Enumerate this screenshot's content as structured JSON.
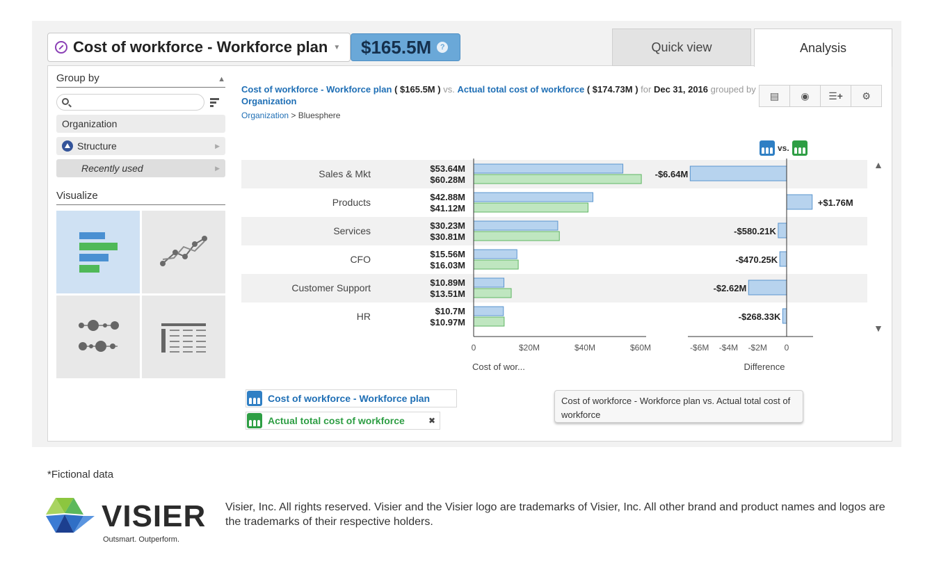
{
  "header": {
    "title": "Cost of workforce - Workforce plan",
    "value": "$165.5M",
    "help_glyph": "?",
    "tabs": [
      {
        "label": "Quick view",
        "active": false
      },
      {
        "label": "Analysis",
        "active": true
      }
    ]
  },
  "sidebar": {
    "group_by_title": "Group by",
    "search_placeholder": "",
    "items": [
      {
        "label": "Organization"
      },
      {
        "label": "Structure"
      },
      {
        "label": "Recently used"
      }
    ],
    "visualize_title": "Visualize",
    "viz_options": [
      "bar-chart-icon",
      "line-chart-icon",
      "bubble-chart-icon",
      "table-icon"
    ],
    "active_viz": "bar-chart-icon"
  },
  "description": {
    "metric1": "Cost of workforce - Workforce plan",
    "metric1_value": "( $165.5M )",
    "vs": "vs.",
    "metric2": "Actual total cost of workforce",
    "metric2_value": "( $174.73M )",
    "for": "for",
    "date": "Dec 31, 2016",
    "grouped_by": "grouped by",
    "group": "Organization"
  },
  "breadcrumb": {
    "root": "Organization",
    "separator": ">",
    "current": "Bluesphere"
  },
  "toolbar": {
    "buttons": [
      "sort-icon",
      "eye-icon",
      "add-list-icon",
      "gear-icon"
    ],
    "glyphs": [
      "▤",
      "◉",
      "☰+",
      "⚙"
    ]
  },
  "vs_legend": "vs.",
  "chart_data": {
    "type": "bar",
    "categories": [
      "Sales & Mkt",
      "Products",
      "Services",
      "CFO",
      "Customer Support",
      "HR"
    ],
    "series": [
      {
        "name": "Cost of workforce - Workforce plan",
        "values": [
          53.64,
          42.88,
          30.23,
          15.56,
          10.89,
          10.7
        ],
        "labels": [
          "$53.64M",
          "$42.88M",
          "$30.23M",
          "$15.56M",
          "$10.89M",
          "$10.7M"
        ],
        "color": "#b7d3ee",
        "stroke": "#5a95cf"
      },
      {
        "name": "Actual total cost of workforce",
        "values": [
          60.28,
          41.12,
          30.81,
          16.03,
          13.51,
          10.97
        ],
        "labels": [
          "$60.28M",
          "$41.12M",
          "$30.81M",
          "$16.03M",
          "$13.51M",
          "$10.97M"
        ],
        "color": "#bfe6c0",
        "stroke": "#5fb563"
      }
    ],
    "difference": {
      "values": [
        -6.64,
        1.76,
        -0.58021,
        -0.47025,
        -2.62,
        -0.26833
      ],
      "labels": [
        "-$6.64M",
        "+$1.76M",
        "-$580.21K",
        "-$470.25K",
        "-$2.62M",
        "-$268.33K"
      ],
      "ticks": [
        "-$6M",
        "-$4M",
        "-$2M",
        "0"
      ],
      "tick_values": [
        -6,
        -4,
        -2,
        0
      ],
      "xlabel": "Difference",
      "xlim": [
        -6.8,
        1.8
      ]
    },
    "xticks": [
      "0",
      "$20M",
      "$40M",
      "$60M"
    ],
    "xtick_values": [
      0,
      20,
      40,
      60
    ],
    "xlabel": "Cost of wor...",
    "xlim": [
      0,
      60
    ]
  },
  "legend": {
    "item1": "Cost of workforce - Workforce plan",
    "item2": "Actual total cost of workforce",
    "close_glyph": "✖"
  },
  "tooltip": "Cost of workforce - Workforce plan vs. Actual total cost of workforce",
  "footer": {
    "note": "*Fictional data",
    "logo_word": "VISIER",
    "logo_tagline": "Outsmart. Outperform.",
    "legal": "Visier, Inc. All rights reserved. Visier and the Visier logo are trademarks of Visier, Inc. All other brand and product names and logos are the trademarks of their respective holders.",
    "colors": {
      "logo_green": "#8cc63f",
      "logo_blue": "#2f6fc6",
      "logo_dark": "#1c3f8f"
    }
  }
}
